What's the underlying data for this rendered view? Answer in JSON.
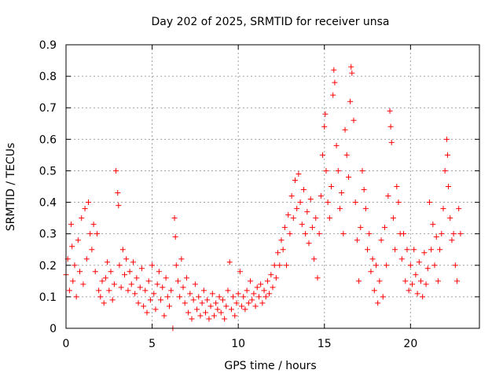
{
  "chart_data": {
    "type": "scatter",
    "title": "Day 202 of 2025, SRMTID for receiver unsa",
    "xlabel": "GPS time / hours",
    "ylabel": "SRMTID / TECUs",
    "xlim": [
      0,
      24
    ],
    "ylim": [
      0,
      0.9
    ],
    "xticks": [
      0,
      5,
      10,
      15,
      20
    ],
    "xtick_labels": [
      "0",
      "5",
      "10",
      "15",
      "20"
    ],
    "yticks": [
      0,
      0.1,
      0.2,
      0.3,
      0.4,
      0.5,
      0.6,
      0.7,
      0.8,
      0.9
    ],
    "ytick_labels": [
      "0",
      "0.1",
      "0.2",
      "0.3",
      "0.4",
      "0.5",
      "0.6",
      "0.7",
      "0.8",
      "0.9"
    ],
    "grid": true,
    "marker": "+",
    "color": "#ff0000",
    "series": [
      {
        "name": "unsa",
        "points": [
          [
            0.0,
            0.17
          ],
          [
            0.1,
            0.22
          ],
          [
            0.2,
            0.12
          ],
          [
            0.3,
            0.33
          ],
          [
            0.35,
            0.26
          ],
          [
            0.4,
            0.15
          ],
          [
            0.5,
            0.2
          ],
          [
            0.6,
            0.1
          ],
          [
            0.7,
            0.28
          ],
          [
            0.8,
            0.18
          ],
          [
            0.9,
            0.35
          ],
          [
            1.0,
            0.14
          ],
          [
            1.1,
            0.38
          ],
          [
            1.2,
            0.22
          ],
          [
            1.3,
            0.4
          ],
          [
            1.4,
            0.3
          ],
          [
            1.5,
            0.25
          ],
          [
            1.6,
            0.33
          ],
          [
            1.7,
            0.18
          ],
          [
            1.8,
            0.3
          ],
          [
            1.9,
            0.12
          ],
          [
            2.0,
            0.1
          ],
          [
            2.1,
            0.15
          ],
          [
            2.2,
            0.08
          ],
          [
            2.3,
            0.16
          ],
          [
            2.4,
            0.21
          ],
          [
            2.5,
            0.12
          ],
          [
            2.6,
            0.18
          ],
          [
            2.7,
            0.09
          ],
          [
            2.8,
            0.14
          ],
          [
            2.9,
            0.5
          ],
          [
            3.0,
            0.43
          ],
          [
            3.05,
            0.39
          ],
          [
            3.1,
            0.2
          ],
          [
            3.2,
            0.13
          ],
          [
            3.3,
            0.25
          ],
          [
            3.4,
            0.17
          ],
          [
            3.5,
            0.22
          ],
          [
            3.6,
            0.12
          ],
          [
            3.7,
            0.18
          ],
          [
            3.8,
            0.14
          ],
          [
            3.9,
            0.21
          ],
          [
            4.0,
            0.11
          ],
          [
            4.1,
            0.16
          ],
          [
            4.2,
            0.08
          ],
          [
            4.3,
            0.13
          ],
          [
            4.4,
            0.19
          ],
          [
            4.5,
            0.07
          ],
          [
            4.6,
            0.12
          ],
          [
            4.7,
            0.05
          ],
          [
            4.8,
            0.15
          ],
          [
            4.9,
            0.09
          ],
          [
            5.0,
            0.2
          ],
          [
            5.1,
            0.11
          ],
          [
            5.2,
            0.06
          ],
          [
            5.3,
            0.14
          ],
          [
            5.4,
            0.18
          ],
          [
            5.5,
            0.09
          ],
          [
            5.6,
            0.13
          ],
          [
            5.7,
            0.04
          ],
          [
            5.8,
            0.16
          ],
          [
            5.9,
            0.1
          ],
          [
            6.0,
            0.07
          ],
          [
            6.1,
            0.12
          ],
          [
            6.2,
            0.0
          ],
          [
            6.3,
            0.35
          ],
          [
            6.35,
            0.29
          ],
          [
            6.4,
            0.2
          ],
          [
            6.5,
            0.15
          ],
          [
            6.6,
            0.1
          ],
          [
            6.7,
            0.22
          ],
          [
            6.8,
            0.13
          ],
          [
            6.9,
            0.08
          ],
          [
            7.0,
            0.16
          ],
          [
            7.1,
            0.05
          ],
          [
            7.2,
            0.11
          ],
          [
            7.3,
            0.03
          ],
          [
            7.4,
            0.09
          ],
          [
            7.5,
            0.14
          ],
          [
            7.6,
            0.06
          ],
          [
            7.7,
            0.1
          ],
          [
            7.8,
            0.04
          ],
          [
            7.9,
            0.08
          ],
          [
            8.0,
            0.12
          ],
          [
            8.1,
            0.05
          ],
          [
            8.2,
            0.09
          ],
          [
            8.3,
            0.03
          ],
          [
            8.4,
            0.07
          ],
          [
            8.5,
            0.11
          ],
          [
            8.6,
            0.04
          ],
          [
            8.7,
            0.08
          ],
          [
            8.8,
            0.06
          ],
          [
            8.9,
            0.1
          ],
          [
            9.0,
            0.05
          ],
          [
            9.1,
            0.09
          ],
          [
            9.2,
            0.03
          ],
          [
            9.3,
            0.07
          ],
          [
            9.4,
            0.12
          ],
          [
            9.5,
            0.21
          ],
          [
            9.6,
            0.06
          ],
          [
            9.7,
            0.1
          ],
          [
            9.8,
            0.04
          ],
          [
            9.9,
            0.08
          ],
          [
            10.0,
            0.11
          ],
          [
            10.1,
            0.18
          ],
          [
            10.2,
            0.07
          ],
          [
            10.3,
            0.1
          ],
          [
            10.4,
            0.06
          ],
          [
            10.5,
            0.12
          ],
          [
            10.6,
            0.08
          ],
          [
            10.7,
            0.15
          ],
          [
            10.8,
            0.09
          ],
          [
            10.9,
            0.11
          ],
          [
            11.0,
            0.07
          ],
          [
            11.1,
            0.13
          ],
          [
            11.2,
            0.1
          ],
          [
            11.3,
            0.14
          ],
          [
            11.4,
            0.08
          ],
          [
            11.5,
            0.12
          ],
          [
            11.6,
            0.1
          ],
          [
            11.7,
            0.15
          ],
          [
            11.8,
            0.11
          ],
          [
            11.9,
            0.17
          ],
          [
            12.0,
            0.13
          ],
          [
            12.1,
            0.2
          ],
          [
            12.2,
            0.16
          ],
          [
            12.3,
            0.24
          ],
          [
            12.4,
            0.2
          ],
          [
            12.5,
            0.28
          ],
          [
            12.6,
            0.25
          ],
          [
            12.7,
            0.32
          ],
          [
            12.8,
            0.2
          ],
          [
            12.9,
            0.36
          ],
          [
            13.0,
            0.3
          ],
          [
            13.1,
            0.42
          ],
          [
            13.2,
            0.35
          ],
          [
            13.3,
            0.47
          ],
          [
            13.4,
            0.38
          ],
          [
            13.5,
            0.49
          ],
          [
            13.6,
            0.4
          ],
          [
            13.7,
            0.33
          ],
          [
            13.8,
            0.44
          ],
          [
            13.9,
            0.3
          ],
          [
            14.0,
            0.37
          ],
          [
            14.1,
            0.27
          ],
          [
            14.2,
            0.41
          ],
          [
            14.3,
            0.32
          ],
          [
            14.4,
            0.22
          ],
          [
            14.5,
            0.35
          ],
          [
            14.6,
            0.16
          ],
          [
            14.7,
            0.3
          ],
          [
            14.8,
            0.42
          ],
          [
            14.9,
            0.55
          ],
          [
            15.0,
            0.64
          ],
          [
            15.05,
            0.68
          ],
          [
            15.1,
            0.5
          ],
          [
            15.2,
            0.4
          ],
          [
            15.3,
            0.35
          ],
          [
            15.4,
            0.45
          ],
          [
            15.5,
            0.74
          ],
          [
            15.55,
            0.82
          ],
          [
            15.6,
            0.78
          ],
          [
            15.7,
            0.58
          ],
          [
            15.8,
            0.5
          ],
          [
            15.9,
            0.38
          ],
          [
            16.0,
            0.43
          ],
          [
            16.1,
            0.3
          ],
          [
            16.2,
            0.63
          ],
          [
            16.3,
            0.55
          ],
          [
            16.4,
            0.48
          ],
          [
            16.5,
            0.72
          ],
          [
            16.55,
            0.83
          ],
          [
            16.6,
            0.81
          ],
          [
            16.7,
            0.66
          ],
          [
            16.8,
            0.4
          ],
          [
            16.9,
            0.28
          ],
          [
            17.0,
            0.15
          ],
          [
            17.1,
            0.32
          ],
          [
            17.2,
            0.5
          ],
          [
            17.3,
            0.44
          ],
          [
            17.4,
            0.38
          ],
          [
            17.5,
            0.25
          ],
          [
            17.6,
            0.3
          ],
          [
            17.7,
            0.18
          ],
          [
            17.8,
            0.22
          ],
          [
            17.9,
            0.12
          ],
          [
            18.0,
            0.2
          ],
          [
            18.1,
            0.08
          ],
          [
            18.2,
            0.15
          ],
          [
            18.3,
            0.28
          ],
          [
            18.4,
            0.1
          ],
          [
            18.5,
            0.32
          ],
          [
            18.6,
            0.2
          ],
          [
            18.7,
            0.42
          ],
          [
            18.8,
            0.69
          ],
          [
            18.85,
            0.64
          ],
          [
            18.9,
            0.59
          ],
          [
            19.0,
            0.35
          ],
          [
            19.1,
            0.25
          ],
          [
            19.2,
            0.45
          ],
          [
            19.3,
            0.4
          ],
          [
            19.4,
            0.3
          ],
          [
            19.5,
            0.22
          ],
          [
            19.6,
            0.3
          ],
          [
            19.7,
            0.15
          ],
          [
            19.8,
            0.25
          ],
          [
            19.9,
            0.12
          ],
          [
            20.0,
            0.2
          ],
          [
            20.1,
            0.14
          ],
          [
            20.2,
            0.25
          ],
          [
            20.3,
            0.17
          ],
          [
            20.4,
            0.11
          ],
          [
            20.5,
            0.21
          ],
          [
            20.6,
            0.15
          ],
          [
            20.7,
            0.1
          ],
          [
            20.8,
            0.24
          ],
          [
            20.9,
            0.14
          ],
          [
            21.0,
            0.19
          ],
          [
            21.1,
            0.4
          ],
          [
            21.2,
            0.25
          ],
          [
            21.3,
            0.33
          ],
          [
            21.4,
            0.2
          ],
          [
            21.5,
            0.29
          ],
          [
            21.6,
            0.15
          ],
          [
            21.7,
            0.25
          ],
          [
            21.8,
            0.3
          ],
          [
            21.9,
            0.38
          ],
          [
            22.0,
            0.5
          ],
          [
            22.1,
            0.6
          ],
          [
            22.15,
            0.55
          ],
          [
            22.2,
            0.45
          ],
          [
            22.3,
            0.35
          ],
          [
            22.4,
            0.28
          ],
          [
            22.5,
            0.3
          ],
          [
            22.6,
            0.2
          ],
          [
            22.7,
            0.15
          ],
          [
            22.8,
            0.38
          ],
          [
            22.9,
            0.3
          ]
        ]
      }
    ]
  }
}
